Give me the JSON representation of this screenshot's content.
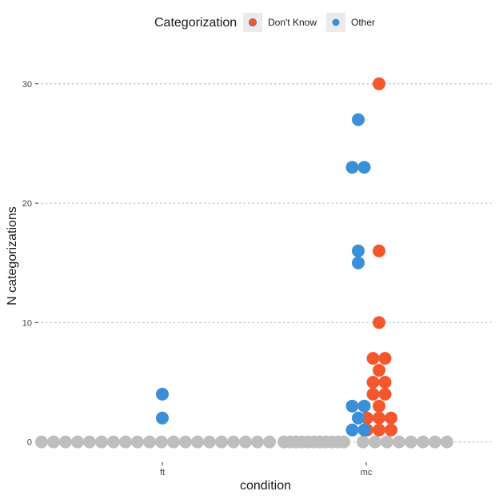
{
  "chart_data": {
    "type": "scatter",
    "style": "dot-plot",
    "xlabel": "condition",
    "ylabel": "N categorizations",
    "categories": [
      "ft",
      "mc"
    ],
    "yticks": [
      0,
      10,
      20,
      30
    ],
    "ylim": [
      -1.5,
      33
    ],
    "grid": "horizontal-dotted",
    "legend": {
      "title": "Categorization",
      "placement": "top",
      "entries": [
        {
          "label": "Don't Know",
          "color": "#f4572e"
        },
        {
          "label": "Other",
          "color": "#3a8fd6"
        }
      ]
    },
    "zero_color": "#bebebe",
    "series": [
      {
        "name": "Don't Know",
        "color": "#f4572e",
        "points": [
          {
            "x": "mc",
            "y": 30
          },
          {
            "x": "mc",
            "y": 16
          },
          {
            "x": "mc",
            "y": 10
          },
          {
            "x": "mc",
            "y": 7
          },
          {
            "x": "mc",
            "y": 7
          },
          {
            "x": "mc",
            "y": 6
          },
          {
            "x": "mc",
            "y": 5
          },
          {
            "x": "mc",
            "y": 5
          },
          {
            "x": "mc",
            "y": 4
          },
          {
            "x": "mc",
            "y": 4
          },
          {
            "x": "mc",
            "y": 3
          },
          {
            "x": "mc",
            "y": 2
          },
          {
            "x": "mc",
            "y": 2
          },
          {
            "x": "mc",
            "y": 2
          },
          {
            "x": "mc",
            "y": 1
          },
          {
            "x": "mc",
            "y": 1
          },
          {
            "x": "mc",
            "y": 1
          }
        ]
      },
      {
        "name": "Other",
        "color": "#3a8fd6",
        "points": [
          {
            "x": "ft",
            "y": 4
          },
          {
            "x": "ft",
            "y": 2
          },
          {
            "x": "mc",
            "y": 27
          },
          {
            "x": "mc",
            "y": 23
          },
          {
            "x": "mc",
            "y": 23
          },
          {
            "x": "mc",
            "y": 16
          },
          {
            "x": "mc",
            "y": 15
          },
          {
            "x": "mc",
            "y": 3
          },
          {
            "x": "mc",
            "y": 3
          },
          {
            "x": "mc",
            "y": 2
          },
          {
            "x": "mc",
            "y": 1
          },
          {
            "x": "mc",
            "y": 1
          }
        ]
      }
    ]
  }
}
